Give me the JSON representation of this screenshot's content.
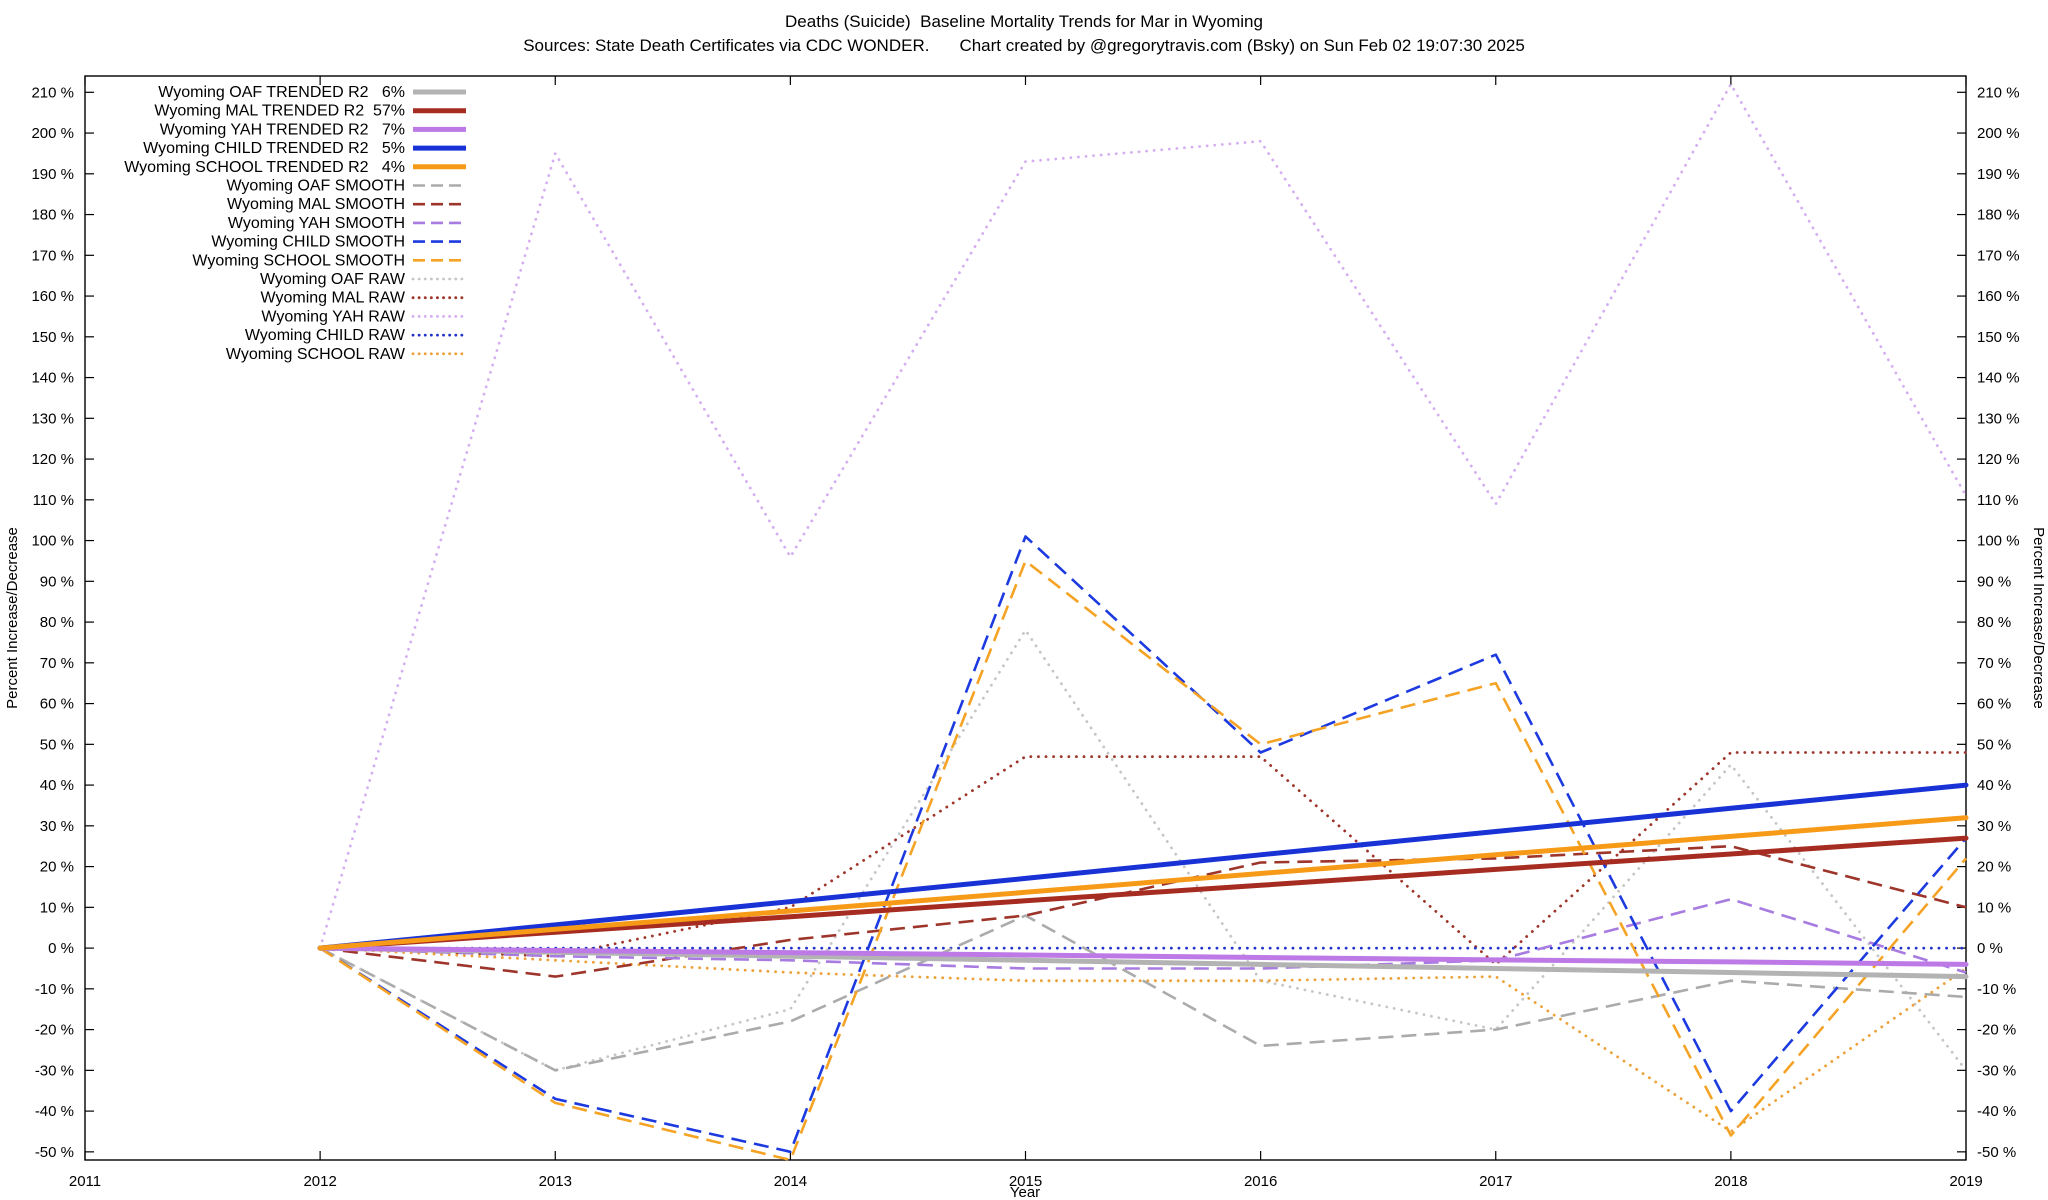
{
  "window": {
    "background": "#ffffff"
  },
  "chart_data": {
    "type": "line",
    "title": "Deaths (Suicide)  Baseline Mortality Trends for Mar in Wyoming",
    "source_note": "Sources: State Death Certificates via CDC WONDER.",
    "credit_note": "Chart created by @gregorytravis.com (Bsky) on Sun Feb 02 19:07:30 2025",
    "xlabel": "Year",
    "ylabel_left": "Percent Increase/Decrease",
    "ylabel_right": "Percent Increase/Decrease",
    "grid": false,
    "legend_position": "top-left",
    "x_range": [
      2011,
      2019
    ],
    "y_range": [
      -52,
      214
    ],
    "x_ticks": [
      2011,
      2012,
      2013,
      2014,
      2015,
      2016,
      2017,
      2018,
      2019
    ],
    "y_ticks": [
      -50,
      -40,
      -30,
      -20,
      -10,
      0,
      10,
      20,
      30,
      40,
      50,
      60,
      70,
      80,
      90,
      100,
      110,
      120,
      130,
      140,
      150,
      160,
      170,
      180,
      190,
      200,
      210
    ],
    "y_tick_suffix": " %",
    "x": [
      2012,
      2013,
      2014,
      2015,
      2016,
      2017,
      2018,
      2019
    ],
    "series": [
      {
        "name": "Wyoming OAF TRENDED",
        "legend_label": "Wyoming OAF TRENDED R2   6%",
        "r2": "6%",
        "style": "solid",
        "color": "#b3b3b3",
        "width": 5,
        "values": [
          0,
          -1,
          -2,
          -3,
          -4,
          -5,
          -6,
          -7
        ]
      },
      {
        "name": "Wyoming MAL TRENDED",
        "legend_label": "Wyoming MAL TRENDED R2  57%",
        "r2": "57%",
        "style": "solid",
        "color": "#a62c21",
        "width": 5,
        "values": [
          0,
          3.9,
          7.7,
          11.6,
          15.4,
          19.3,
          23.1,
          27
        ]
      },
      {
        "name": "Wyoming YAH TRENDED",
        "legend_label": "Wyoming YAH TRENDED R2   7%",
        "r2": "7%",
        "style": "solid",
        "color": "#bd7ae6",
        "width": 5,
        "values": [
          0,
          -0.6,
          -1.1,
          -1.7,
          -2.3,
          -2.9,
          -3.4,
          -4
        ]
      },
      {
        "name": "Wyoming CHILD TRENDED",
        "legend_label": "Wyoming CHILD TRENDED R2   5%",
        "r2": "5%",
        "style": "solid",
        "color": "#1832d6",
        "width": 5,
        "values": [
          0,
          5.7,
          11.4,
          17.1,
          22.9,
          28.6,
          34.3,
          40
        ]
      },
      {
        "name": "Wyoming SCHOOL TRENDED",
        "legend_label": "Wyoming SCHOOL TRENDED R2   4%",
        "r2": "4%",
        "style": "solid",
        "color": "#f79a17",
        "width": 5,
        "values": [
          0,
          4.6,
          9.1,
          13.7,
          18.3,
          22.9,
          27.4,
          32
        ]
      },
      {
        "name": "Wyoming OAF SMOOTH",
        "legend_label": "Wyoming OAF SMOOTH",
        "style": "dashed",
        "color": "#ababab",
        "width": 2.6,
        "values": [
          0,
          -30,
          -18,
          8,
          -24,
          -20,
          -8,
          -12
        ]
      },
      {
        "name": "Wyoming MAL SMOOTH",
        "legend_label": "Wyoming MAL SMOOTH",
        "style": "dashed",
        "color": "#9e352b",
        "width": 2.6,
        "values": [
          0,
          -7,
          2,
          8,
          21,
          22,
          25,
          10
        ]
      },
      {
        "name": "Wyoming YAH SMOOTH",
        "legend_label": "Wyoming YAH SMOOTH",
        "style": "dashed",
        "color": "#a77be0",
        "width": 2.6,
        "values": [
          0,
          -2,
          -3,
          -5,
          -5,
          -3,
          12,
          -6
        ]
      },
      {
        "name": "Wyoming CHILD SMOOTH",
        "legend_label": "Wyoming CHILD SMOOTH",
        "style": "dashed",
        "color": "#1c3ae0",
        "width": 2.6,
        "values": [
          0,
          -37,
          -50,
          101,
          48,
          72,
          -40,
          27
        ]
      },
      {
        "name": "Wyoming SCHOOL SMOOTH",
        "legend_label": "Wyoming SCHOOL SMOOTH",
        "style": "dashed",
        "color": "#f5a325",
        "width": 2.6,
        "values": [
          0,
          -38,
          -52,
          95,
          50,
          65,
          -46,
          22
        ]
      },
      {
        "name": "Wyoming OAF RAW",
        "legend_label": "Wyoming OAF RAW",
        "style": "dotted",
        "color": "#c6c6c6",
        "width": 2.8,
        "values": [
          0,
          -30,
          -15,
          78,
          -8,
          -20,
          45,
          -30
        ]
      },
      {
        "name": "Wyoming MAL RAW",
        "legend_label": "Wyoming MAL RAW",
        "style": "dotted",
        "color": "#9e352b",
        "width": 2.8,
        "values": [
          0,
          -2,
          10,
          47,
          47,
          -4,
          48,
          48
        ]
      },
      {
        "name": "Wyoming YAH RAW",
        "legend_label": "Wyoming YAH RAW",
        "style": "dotted",
        "color": "#d5aef2",
        "width": 2.8,
        "values": [
          0,
          195,
          96,
          193,
          198,
          109,
          212,
          111
        ]
      },
      {
        "name": "Wyoming CHILD RAW",
        "legend_label": "Wyoming CHILD RAW",
        "style": "dotted",
        "color": "#2233cc",
        "width": 2.8,
        "values": [
          0,
          0,
          0,
          0,
          0,
          0,
          0,
          0
        ]
      },
      {
        "name": "Wyoming SCHOOL RAW",
        "legend_label": "Wyoming SCHOOL RAW",
        "style": "dotted",
        "color": "#eda13a",
        "width": 2.8,
        "values": [
          0,
          -3,
          -6,
          -8,
          -8,
          -7,
          -45,
          -5
        ]
      }
    ]
  }
}
